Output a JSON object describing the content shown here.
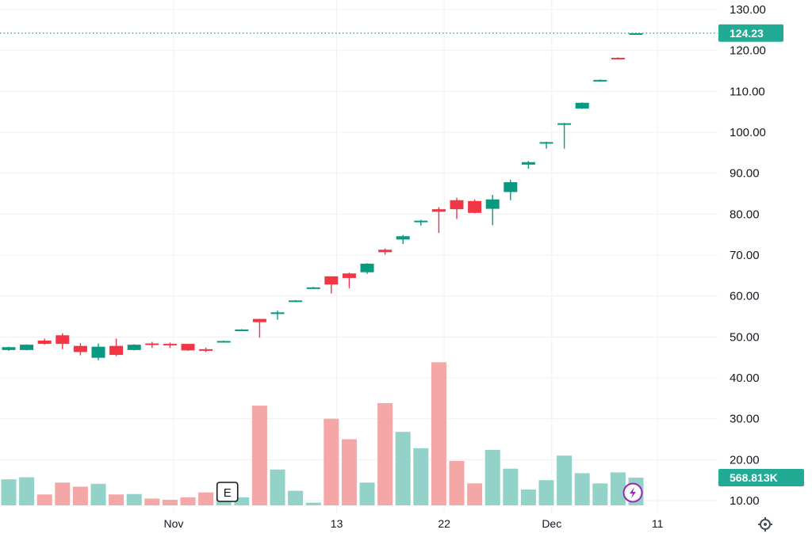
{
  "colors": {
    "up": "#089981",
    "down": "#f23645",
    "vol_up": "#93d2c8",
    "vol_down": "#f5a6a6",
    "grid": "#eef0f3",
    "price_line": "#22ab94",
    "tag_bg": "#22ab94",
    "event_icon": "#9c27b0"
  },
  "chart_data": {
    "type": "candlestick",
    "y_axis": {
      "min": 10,
      "max": 130,
      "ticks": [
        "130.00",
        "120.00",
        "110.00",
        "100.00",
        "90.00",
        "80.00",
        "70.00",
        "60.00",
        "50.00",
        "40.00",
        "30.00",
        "20.00",
        "10.00"
      ]
    },
    "x_axis": {
      "ticks": [
        {
          "label": "Nov",
          "index": 9.2
        },
        {
          "label": "13",
          "index": 18.3
        },
        {
          "label": "22",
          "index": 24.3
        },
        {
          "label": "Dec",
          "index": 30.3
        },
        {
          "label": "11",
          "index": 36.2
        }
      ]
    },
    "last_price": "124.23",
    "last_price_value": 124.23,
    "last_volume": "568.813K",
    "candles": [
      {
        "o": 46.8,
        "h": 47.6,
        "l": 46.6,
        "c": 47.5
      },
      {
        "o": 46.8,
        "h": 48.2,
        "l": 46.7,
        "c": 48.1
      },
      {
        "o": 49.1,
        "h": 49.6,
        "l": 48.1,
        "c": 48.3
      },
      {
        "o": 50.4,
        "h": 50.9,
        "l": 47.0,
        "c": 48.3
      },
      {
        "o": 47.8,
        "h": 48.5,
        "l": 45.5,
        "c": 46.3
      },
      {
        "o": 44.9,
        "h": 48.4,
        "l": 44.3,
        "c": 47.6
      },
      {
        "o": 47.8,
        "h": 49.6,
        "l": 45.3,
        "c": 45.6
      },
      {
        "o": 46.8,
        "h": 48.2,
        "l": 46.7,
        "c": 48.1
      },
      {
        "o": 48.4,
        "h": 48.8,
        "l": 47.3,
        "c": 48.2
      },
      {
        "o": 48.3,
        "h": 48.6,
        "l": 47.3,
        "c": 48.1
      },
      {
        "o": 48.3,
        "h": 48.3,
        "l": 46.6,
        "c": 46.7
      },
      {
        "o": 47.0,
        "h": 47.4,
        "l": 46.3,
        "c": 46.6
      },
      {
        "o": 48.8,
        "h": 49.1,
        "l": 48.8,
        "c": 49.0
      },
      {
        "o": 51.6,
        "h": 51.9,
        "l": 51.6,
        "c": 51.8
      },
      {
        "o": 54.4,
        "h": 54.4,
        "l": 49.8,
        "c": 53.6
      },
      {
        "o": 55.6,
        "h": 56.4,
        "l": 54.2,
        "c": 56.0
      },
      {
        "o": 58.8,
        "h": 59.0,
        "l": 58.7,
        "c": 58.9
      },
      {
        "o": 62.0,
        "h": 62.2,
        "l": 61.9,
        "c": 62.1
      },
      {
        "o": 64.8,
        "h": 64.8,
        "l": 60.6,
        "c": 62.8
      },
      {
        "o": 65.5,
        "h": 65.7,
        "l": 61.9,
        "c": 64.4
      },
      {
        "o": 65.8,
        "h": 68.0,
        "l": 65.4,
        "c": 67.9
      },
      {
        "o": 71.3,
        "h": 71.6,
        "l": 70.1,
        "c": 70.7
      },
      {
        "o": 73.8,
        "h": 74.9,
        "l": 72.7,
        "c": 74.6
      },
      {
        "o": 78.3,
        "h": 78.6,
        "l": 77.2,
        "c": 78.4
      },
      {
        "o": 81.2,
        "h": 81.7,
        "l": 75.4,
        "c": 80.6
      },
      {
        "o": 83.4,
        "h": 84.0,
        "l": 78.8,
        "c": 81.2
      },
      {
        "o": 83.2,
        "h": 83.6,
        "l": 80.2,
        "c": 80.3
      },
      {
        "o": 81.3,
        "h": 84.7,
        "l": 77.3,
        "c": 83.6
      },
      {
        "o": 85.4,
        "h": 88.4,
        "l": 83.4,
        "c": 87.8
      },
      {
        "o": 92.1,
        "h": 93.0,
        "l": 91.1,
        "c": 92.7
      },
      {
        "o": 97.5,
        "h": 97.7,
        "l": 96.0,
        "c": 97.6
      },
      {
        "o": 102.1,
        "h": 102.3,
        "l": 96.0,
        "c": 102.2
      },
      {
        "o": 105.8,
        "h": 107.3,
        "l": 105.7,
        "c": 107.2
      },
      {
        "o": 112.7,
        "h": 112.9,
        "l": 112.6,
        "c": 112.8
      },
      {
        "o": 118.2,
        "h": 118.3,
        "l": 118.0,
        "c": 118.1
      },
      {
        "o": 124.1,
        "h": 124.3,
        "l": 124.1,
        "c": 124.2
      }
    ],
    "volume": [
      {
        "v": 15.2,
        "up": true
      },
      {
        "v": 15.7,
        "up": true
      },
      {
        "v": 11.5,
        "up": false
      },
      {
        "v": 14.4,
        "up": false
      },
      {
        "v": 13.4,
        "up": false
      },
      {
        "v": 14.1,
        "up": true
      },
      {
        "v": 11.5,
        "up": false
      },
      {
        "v": 11.6,
        "up": true
      },
      {
        "v": 10.5,
        "up": false
      },
      {
        "v": 10.2,
        "up": false
      },
      {
        "v": 10.8,
        "up": false
      },
      {
        "v": 12.0,
        "up": false
      },
      {
        "v": 10.7,
        "up": true
      },
      {
        "v": 10.8,
        "up": true
      },
      {
        "v": 33.2,
        "up": false
      },
      {
        "v": 17.6,
        "up": true
      },
      {
        "v": 12.4,
        "up": true
      },
      {
        "v": 9.5,
        "up": true
      },
      {
        "v": 30.0,
        "up": false
      },
      {
        "v": 25.0,
        "up": false
      },
      {
        "v": 14.4,
        "up": true
      },
      {
        "v": 33.8,
        "up": false
      },
      {
        "v": 26.8,
        "up": true
      },
      {
        "v": 22.8,
        "up": true
      },
      {
        "v": 43.8,
        "up": false
      },
      {
        "v": 19.7,
        "up": false
      },
      {
        "v": 14.2,
        "up": false
      },
      {
        "v": 22.4,
        "up": true
      },
      {
        "v": 17.8,
        "up": true
      },
      {
        "v": 12.7,
        "up": true
      },
      {
        "v": 15.0,
        "up": true
      },
      {
        "v": 21.0,
        "up": true
      },
      {
        "v": 16.7,
        "up": true
      },
      {
        "v": 14.2,
        "up": true
      },
      {
        "v": 16.9,
        "up": true
      },
      {
        "v": 15.6,
        "up": true
      }
    ],
    "events": [
      {
        "label": "E",
        "index": 12.2
      }
    ]
  }
}
